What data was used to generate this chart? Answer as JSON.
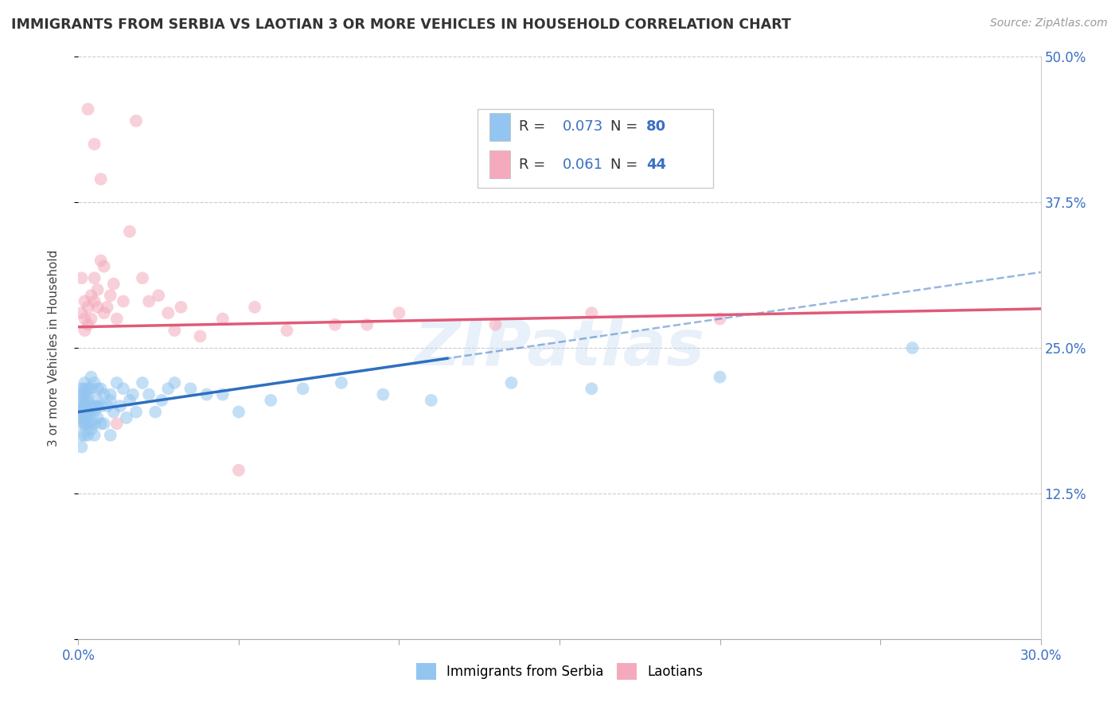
{
  "title": "IMMIGRANTS FROM SERBIA VS LAOTIAN 3 OR MORE VEHICLES IN HOUSEHOLD CORRELATION CHART",
  "source": "Source: ZipAtlas.com",
  "ylabel": "3 or more Vehicles in Household",
  "x_min": 0.0,
  "x_max": 0.3,
  "y_min": 0.0,
  "y_max": 0.5,
  "serbia_color": "#92C5F0",
  "laotian_color": "#F4AABC",
  "serbia_line_color": "#2E6FBF",
  "laotian_line_color": "#E05A78",
  "r_serbia": 0.073,
  "n_serbia": 80,
  "r_laotian": 0.061,
  "n_laotian": 44,
  "watermark": "ZIPatlas",
  "serbia_x": [
    0.001,
    0.001,
    0.001,
    0.001,
    0.001,
    0.001,
    0.001,
    0.001,
    0.001,
    0.001,
    0.002,
    0.002,
    0.002,
    0.002,
    0.002,
    0.002,
    0.002,
    0.002,
    0.002,
    0.002,
    0.002,
    0.003,
    0.003,
    0.003,
    0.003,
    0.003,
    0.003,
    0.003,
    0.003,
    0.004,
    0.004,
    0.004,
    0.004,
    0.004,
    0.004,
    0.005,
    0.005,
    0.005,
    0.005,
    0.005,
    0.006,
    0.006,
    0.006,
    0.006,
    0.007,
    0.007,
    0.007,
    0.008,
    0.008,
    0.009,
    0.01,
    0.01,
    0.011,
    0.012,
    0.013,
    0.014,
    0.015,
    0.016,
    0.017,
    0.018,
    0.02,
    0.022,
    0.024,
    0.026,
    0.028,
    0.03,
    0.035,
    0.04,
    0.045,
    0.05,
    0.06,
    0.07,
    0.082,
    0.095,
    0.11,
    0.135,
    0.16,
    0.2,
    0.26,
    0.01
  ],
  "serbia_y": [
    0.195,
    0.185,
    0.21,
    0.175,
    0.215,
    0.195,
    0.2,
    0.165,
    0.205,
    0.19,
    0.2,
    0.195,
    0.21,
    0.185,
    0.215,
    0.19,
    0.205,
    0.175,
    0.2,
    0.185,
    0.22,
    0.2,
    0.195,
    0.185,
    0.175,
    0.21,
    0.205,
    0.195,
    0.215,
    0.215,
    0.2,
    0.185,
    0.195,
    0.225,
    0.18,
    0.2,
    0.195,
    0.185,
    0.175,
    0.22,
    0.205,
    0.19,
    0.2,
    0.215,
    0.2,
    0.215,
    0.185,
    0.21,
    0.185,
    0.2,
    0.21,
    0.205,
    0.195,
    0.22,
    0.2,
    0.215,
    0.19,
    0.205,
    0.21,
    0.195,
    0.22,
    0.21,
    0.195,
    0.205,
    0.215,
    0.22,
    0.215,
    0.21,
    0.21,
    0.195,
    0.205,
    0.215,
    0.22,
    0.21,
    0.205,
    0.22,
    0.215,
    0.225,
    0.25,
    0.175
  ],
  "laotian_x": [
    0.001,
    0.001,
    0.002,
    0.002,
    0.002,
    0.003,
    0.003,
    0.004,
    0.004,
    0.005,
    0.005,
    0.006,
    0.006,
    0.007,
    0.008,
    0.008,
    0.009,
    0.01,
    0.011,
    0.012,
    0.014,
    0.016,
    0.018,
    0.02,
    0.022,
    0.025,
    0.028,
    0.032,
    0.038,
    0.045,
    0.055,
    0.065,
    0.08,
    0.1,
    0.13,
    0.16,
    0.2,
    0.003,
    0.005,
    0.007,
    0.012,
    0.03,
    0.05,
    0.09
  ],
  "laotian_y": [
    0.28,
    0.31,
    0.265,
    0.275,
    0.29,
    0.27,
    0.285,
    0.275,
    0.295,
    0.29,
    0.31,
    0.285,
    0.3,
    0.395,
    0.28,
    0.32,
    0.285,
    0.295,
    0.305,
    0.275,
    0.29,
    0.35,
    0.445,
    0.31,
    0.29,
    0.295,
    0.28,
    0.285,
    0.26,
    0.275,
    0.285,
    0.265,
    0.27,
    0.28,
    0.27,
    0.28,
    0.275,
    0.455,
    0.425,
    0.325,
    0.185,
    0.265,
    0.145,
    0.27
  ]
}
